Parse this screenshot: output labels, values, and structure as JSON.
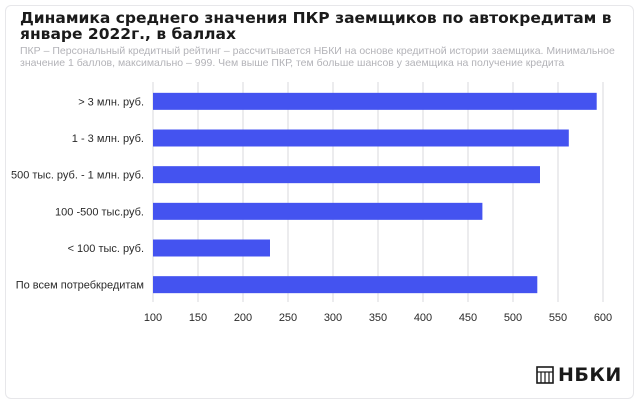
{
  "title": "Динамика среднего значения ПКР заемщиков по автокредитам в январе 2022г., в баллах",
  "subtitle": "ПКР – Персональный кредитный рейтинг – рассчитывается НБКИ на основе кредитной истории заемщика. Минимальное значение 1 баллов, максимально – 999. Чем выше ПКР, тем больше шансов у заемщика на получение кредита",
  "logo_text": "НБКИ",
  "colors": {
    "bar": "#4453f0",
    "grid": "#d9d9de",
    "axis_text": "#2a2a2a"
  },
  "chart_data": {
    "type": "bar",
    "orientation": "horizontal",
    "categories": [
      "> 3 млн. руб.",
      "1 - 3 млн. руб.",
      "500 тыс. руб. - 1 млн. руб.",
      "100 -500 тыс.руб.",
      "< 100 тыс. руб.",
      "По всем потребкредитам"
    ],
    "values": [
      593,
      562,
      530,
      466,
      230,
      527
    ],
    "xlim": [
      100,
      600
    ],
    "xticks": [
      100,
      150,
      200,
      250,
      300,
      350,
      400,
      450,
      500,
      550,
      600
    ],
    "grid": true
  }
}
